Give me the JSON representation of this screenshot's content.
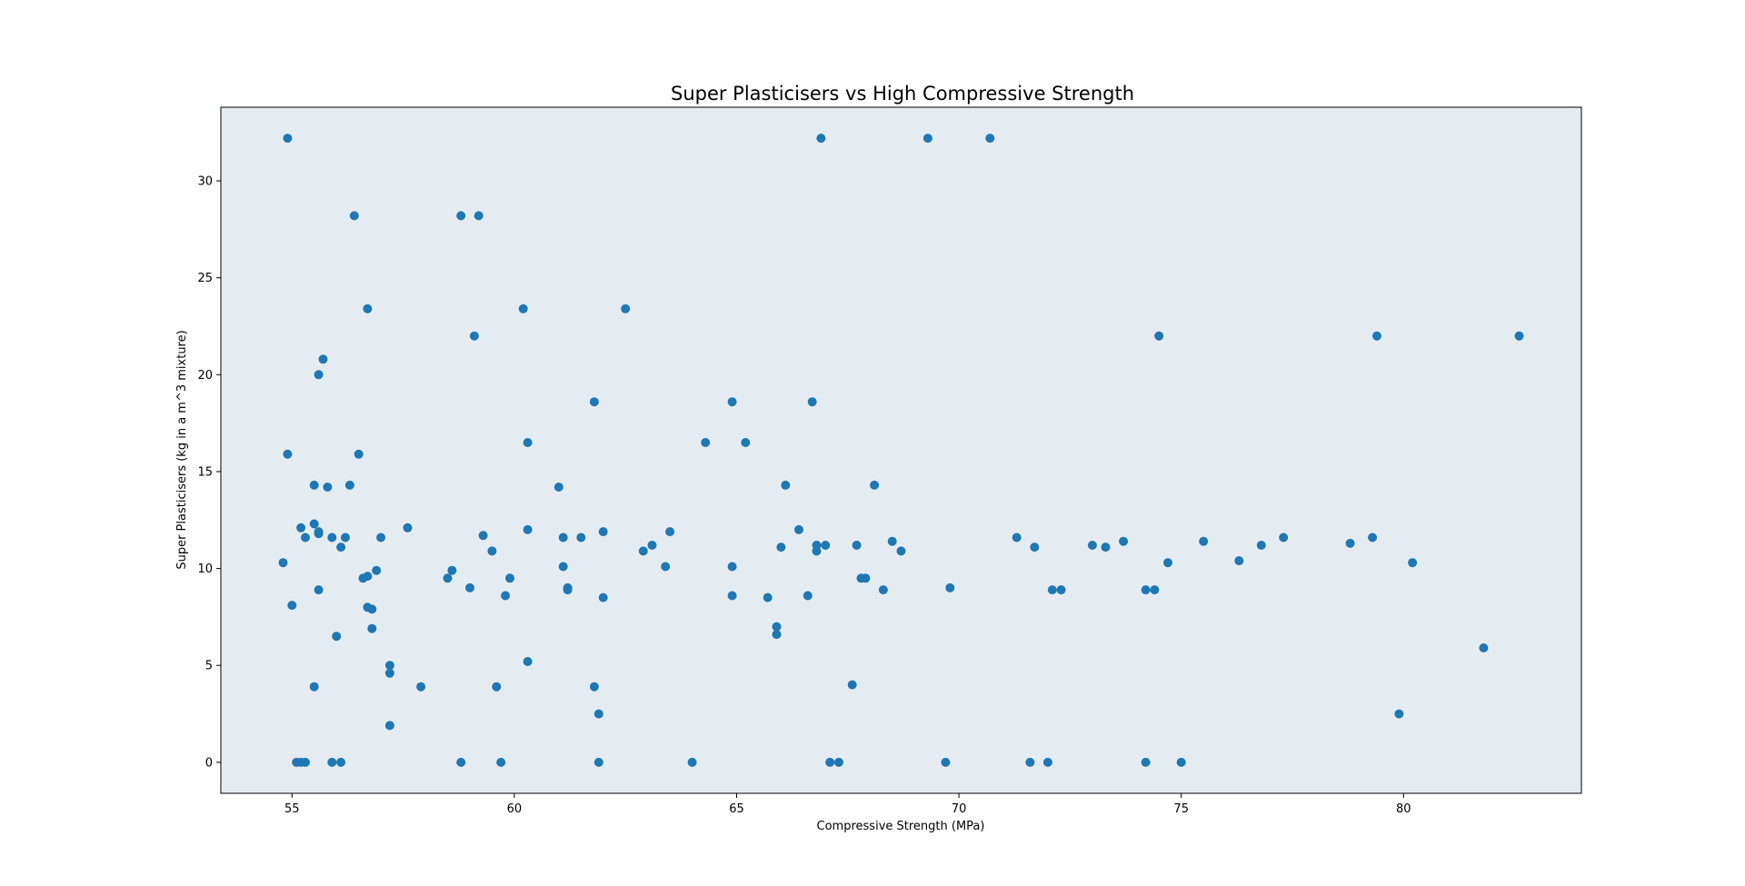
{
  "chart_data": {
    "type": "scatter",
    "title": "Super Plasticisers vs High Compressive Strength",
    "xlabel": "Compressive Strength (MPa)",
    "ylabel": "Super Plasticisers (kg in a m^3 mixture)",
    "xlim": [
      53.4,
      84.0
    ],
    "ylim": [
      -1.6,
      33.8
    ],
    "xticks": [
      55,
      60,
      65,
      70,
      75,
      80
    ],
    "yticks": [
      0,
      5,
      10,
      15,
      20,
      25,
      30
    ],
    "grid": false,
    "background_color": "#e5ecf1",
    "point_color": "#1f77b4",
    "series": [
      {
        "x": [
          54.9,
          69.3,
          70.7,
          66.9,
          56.4,
          58.8,
          59.2,
          56.7,
          60.2,
          62.5,
          59.1,
          74.5,
          79.4,
          82.6,
          55.7,
          55.6,
          61.8,
          64.9,
          66.7,
          54.9,
          56.5,
          60.3,
          64.3,
          65.2,
          55.5,
          55.8,
          56.3,
          61.0,
          66.1,
          68.1,
          55.5,
          55.2,
          55.6,
          57.6,
          60.3,
          62.0,
          63.5,
          66.4,
          55.6,
          55.3,
          55.9,
          56.2,
          57.0,
          59.3,
          61.1,
          61.5,
          71.3,
          77.3,
          79.3,
          56.1,
          63.1,
          66.0,
          66.8,
          67.0,
          67.7,
          68.5,
          71.7,
          73.0,
          73.3,
          73.7,
          75.5,
          76.8,
          78.8,
          62.9,
          59.5,
          66.8,
          68.7,
          76.3,
          54.8,
          61.1,
          63.4,
          64.9,
          74.7,
          80.2,
          56.9,
          58.6,
          59.9,
          56.7,
          56.6,
          58.5,
          67.8,
          67.9,
          55.0,
          56.8,
          56.7,
          55.6,
          59.0,
          61.2,
          61.2,
          68.3,
          69.8,
          72.1,
          72.3,
          74.2,
          74.4,
          59.8,
          62.0,
          64.9,
          65.7,
          66.6,
          56.8,
          65.9,
          56.0,
          65.9,
          81.8,
          57.2,
          57.2,
          60.3,
          55.5,
          57.9,
          59.6,
          61.8,
          67.6,
          61.9,
          79.9,
          57.2,
          55.1,
          55.2,
          55.3,
          55.9,
          56.1,
          58.8,
          59.7,
          61.9,
          64.0,
          67.1,
          67.3,
          69.7,
          71.6,
          72.0,
          74.2,
          75.0
        ],
        "y": [
          32.2,
          32.2,
          32.2,
          32.2,
          28.2,
          28.2,
          28.2,
          23.4,
          23.4,
          23.4,
          22.0,
          22.0,
          22.0,
          22.0,
          20.8,
          20.0,
          18.6,
          18.6,
          18.6,
          15.9,
          15.9,
          16.5,
          16.5,
          16.5,
          14.3,
          14.2,
          14.3,
          14.2,
          14.3,
          14.3,
          12.3,
          12.1,
          11.9,
          12.1,
          12.0,
          11.9,
          11.9,
          12.0,
          11.8,
          11.6,
          11.6,
          11.6,
          11.6,
          11.7,
          11.6,
          11.6,
          11.6,
          11.6,
          11.6,
          11.1,
          11.2,
          11.1,
          11.2,
          11.2,
          11.2,
          11.4,
          11.1,
          11.2,
          11.1,
          11.4,
          11.4,
          11.2,
          11.3,
          10.9,
          10.9,
          10.9,
          10.9,
          10.4,
          10.3,
          10.1,
          10.1,
          10.1,
          10.3,
          10.3,
          9.9,
          9.9,
          9.5,
          9.6,
          9.5,
          9.5,
          9.5,
          9.5,
          8.1,
          7.9,
          8.0,
          8.9,
          9.0,
          9.0,
          8.9,
          8.9,
          9.0,
          8.9,
          8.9,
          8.9,
          8.9,
          8.6,
          8.5,
          8.6,
          8.5,
          8.6,
          6.9,
          7.0,
          6.5,
          6.6,
          5.9,
          5.0,
          4.6,
          5.2,
          3.9,
          3.9,
          3.9,
          3.9,
          4.0,
          2.5,
          2.5,
          1.9,
          0.0,
          0.0,
          0.0,
          0.0,
          0.0,
          0.0,
          0.0,
          0.0,
          0.0,
          0.0,
          0.0,
          0.0,
          0.0,
          0.0,
          0.0,
          0.0
        ]
      }
    ]
  }
}
